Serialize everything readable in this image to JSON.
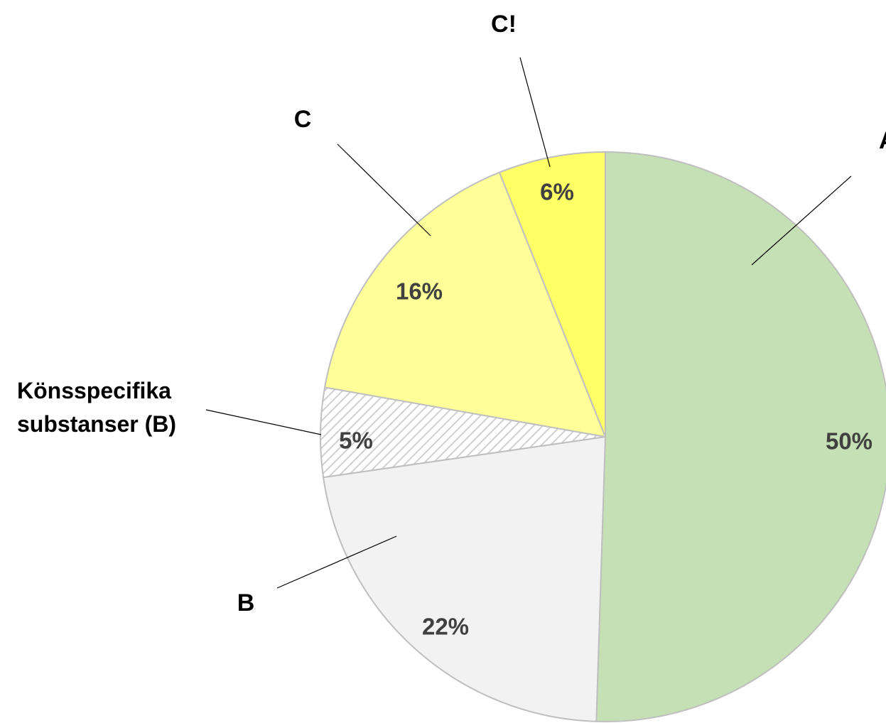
{
  "chart_data": {
    "type": "pie",
    "start_angle_deg": 0,
    "direction": "clockwise",
    "slices": [
      {
        "label": "A",
        "value": 50,
        "value_label": "50%",
        "color": "#c5e0b4",
        "pattern": "none"
      },
      {
        "label": "B",
        "value": 22,
        "value_label": "22%",
        "color": "#f2f2f2",
        "pattern": "none"
      },
      {
        "label": "Könsspecifika substanser (B)",
        "label_lines": [
          "Könsspecifika",
          "substanser (B)"
        ],
        "value": 5,
        "value_label": "5%",
        "color": "#ffffff",
        "pattern": "diagonal-hatch"
      },
      {
        "label": "C",
        "value": 16,
        "value_label": "16%",
        "color": "#ffff99",
        "pattern": "none"
      },
      {
        "label": "C!",
        "value": 6,
        "value_label": "6%",
        "color": "#ffff66",
        "pattern": "none"
      }
    ],
    "border_color": "#bfbfbf",
    "leader_line_color": "#000000",
    "legend": "none"
  }
}
